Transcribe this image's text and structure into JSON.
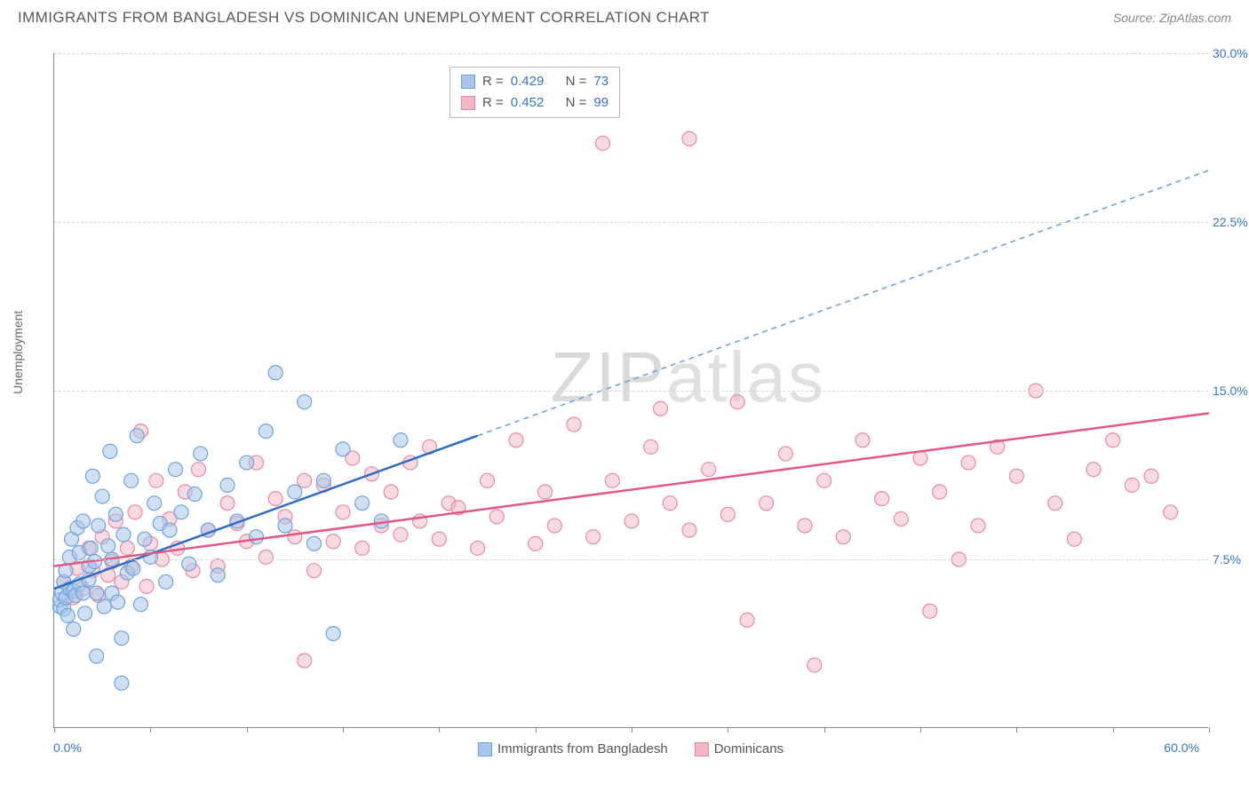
{
  "header": {
    "title": "IMMIGRANTS FROM BANGLADESH VS DOMINICAN UNEMPLOYMENT CORRELATION CHART",
    "source": "Source: ZipAtlas.com"
  },
  "watermark": {
    "part1": "ZIP",
    "part2": "atlas"
  },
  "chart": {
    "type": "scatter",
    "ylabel": "Unemployment",
    "xlim": [
      0,
      60
    ],
    "ylim": [
      0,
      30
    ],
    "x_min_label": "0.0%",
    "x_max_label": "60.0%",
    "ytick_labels": [
      "7.5%",
      "15.0%",
      "22.5%",
      "30.0%"
    ],
    "ytick_values": [
      7.5,
      15.0,
      22.5,
      30.0
    ],
    "xtick_values": [
      0,
      5,
      10,
      15,
      20,
      25,
      30,
      35,
      40,
      45,
      50,
      55,
      60
    ],
    "background_color": "#ffffff",
    "grid_color": "#d8d8d8",
    "axis_color": "#888888",
    "marker_radius": 8,
    "marker_stroke_width": 1.2,
    "series": [
      {
        "id": "bangladesh",
        "label": "Immigrants from Bangladesh",
        "fill": "#a9c6ea",
        "fill_opacity": 0.55,
        "stroke": "#6ea2dd",
        "line_color": "#2f6bc4",
        "line_dash_color": "#6ea2dd",
        "R": "0.429",
        "N": "73",
        "regression": {
          "x1": 0,
          "y1": 6.2,
          "x2_solid": 22,
          "y2_solid": 13.0,
          "x2": 60,
          "y2": 24.8
        },
        "points": [
          [
            0.3,
            5.4
          ],
          [
            0.3,
            5.7
          ],
          [
            0.4,
            6.0
          ],
          [
            0.5,
            5.3
          ],
          [
            0.5,
            6.5
          ],
          [
            0.6,
            5.8
          ],
          [
            0.6,
            7.0
          ],
          [
            0.7,
            5.0
          ],
          [
            0.8,
            6.2
          ],
          [
            0.8,
            7.6
          ],
          [
            0.9,
            8.4
          ],
          [
            1.0,
            6.1
          ],
          [
            1.0,
            4.4
          ],
          [
            1.1,
            5.9
          ],
          [
            1.2,
            8.9
          ],
          [
            1.3,
            6.4
          ],
          [
            1.3,
            7.8
          ],
          [
            1.5,
            9.2
          ],
          [
            1.5,
            6.0
          ],
          [
            1.6,
            5.1
          ],
          [
            1.8,
            7.2
          ],
          [
            1.8,
            6.6
          ],
          [
            1.9,
            8.0
          ],
          [
            2.0,
            11.2
          ],
          [
            2.1,
            7.4
          ],
          [
            2.2,
            6.0
          ],
          [
            2.3,
            9.0
          ],
          [
            2.5,
            10.3
          ],
          [
            2.6,
            5.4
          ],
          [
            2.8,
            8.1
          ],
          [
            2.9,
            12.3
          ],
          [
            3.0,
            6.0
          ],
          [
            3.0,
            7.5
          ],
          [
            3.2,
            9.5
          ],
          [
            3.3,
            5.6
          ],
          [
            3.5,
            4.0
          ],
          [
            3.6,
            8.6
          ],
          [
            3.8,
            6.9
          ],
          [
            4.0,
            11.0
          ],
          [
            4.1,
            7.1
          ],
          [
            4.3,
            13.0
          ],
          [
            4.5,
            5.5
          ],
          [
            4.7,
            8.4
          ],
          [
            5.0,
            7.6
          ],
          [
            5.2,
            10.0
          ],
          [
            5.5,
            9.1
          ],
          [
            5.8,
            6.5
          ],
          [
            6.0,
            8.8
          ],
          [
            6.3,
            11.5
          ],
          [
            6.6,
            9.6
          ],
          [
            7.0,
            7.3
          ],
          [
            7.3,
            10.4
          ],
          [
            7.6,
            12.2
          ],
          [
            8.0,
            8.8
          ],
          [
            8.5,
            6.8
          ],
          [
            9.0,
            10.8
          ],
          [
            9.5,
            9.2
          ],
          [
            10.0,
            11.8
          ],
          [
            10.5,
            8.5
          ],
          [
            11.0,
            13.2
          ],
          [
            11.5,
            15.8
          ],
          [
            12.0,
            9.0
          ],
          [
            12.5,
            10.5
          ],
          [
            13.0,
            14.5
          ],
          [
            13.5,
            8.2
          ],
          [
            14.0,
            11.0
          ],
          [
            14.5,
            4.2
          ],
          [
            15.0,
            12.4
          ],
          [
            16.0,
            10.0
          ],
          [
            17.0,
            9.2
          ],
          [
            18.0,
            12.8
          ],
          [
            3.5,
            2.0
          ],
          [
            2.2,
            3.2
          ]
        ]
      },
      {
        "id": "dominicans",
        "label": "Dominicans",
        "fill": "#f2b6c4",
        "fill_opacity": 0.5,
        "stroke": "#e88aa2",
        "line_color": "#e35784",
        "R": "0.452",
        "N": "99",
        "regression": {
          "x1": 0,
          "y1": 7.2,
          "x2_solid": 60,
          "y2_solid": 14.0,
          "x2": 60,
          "y2": 14.0
        },
        "points": [
          [
            0.5,
            6.5
          ],
          [
            1.0,
            5.8
          ],
          [
            1.2,
            7.1
          ],
          [
            1.5,
            6.2
          ],
          [
            1.8,
            8.0
          ],
          [
            2.0,
            7.0
          ],
          [
            2.3,
            5.9
          ],
          [
            2.5,
            8.5
          ],
          [
            2.8,
            6.8
          ],
          [
            3.0,
            7.4
          ],
          [
            3.2,
            9.2
          ],
          [
            3.5,
            6.5
          ],
          [
            3.8,
            8.0
          ],
          [
            4.0,
            7.2
          ],
          [
            4.2,
            9.6
          ],
          [
            4.5,
            13.2
          ],
          [
            4.8,
            6.3
          ],
          [
            5.0,
            8.2
          ],
          [
            5.3,
            11.0
          ],
          [
            5.6,
            7.5
          ],
          [
            6.0,
            9.3
          ],
          [
            6.4,
            8.0
          ],
          [
            6.8,
            10.5
          ],
          [
            7.2,
            7.0
          ],
          [
            7.5,
            11.5
          ],
          [
            8.0,
            8.8
          ],
          [
            8.5,
            7.2
          ],
          [
            9.0,
            10.0
          ],
          [
            9.5,
            9.1
          ],
          [
            10.0,
            8.3
          ],
          [
            10.5,
            11.8
          ],
          [
            11.0,
            7.6
          ],
          [
            11.5,
            10.2
          ],
          [
            12.0,
            9.4
          ],
          [
            12.5,
            8.5
          ],
          [
            13.0,
            11.0
          ],
          [
            13.5,
            7.0
          ],
          [
            14.0,
            10.8
          ],
          [
            14.5,
            8.3
          ],
          [
            15.0,
            9.6
          ],
          [
            15.5,
            12.0
          ],
          [
            16.0,
            8.0
          ],
          [
            16.5,
            11.3
          ],
          [
            17.0,
            9.0
          ],
          [
            17.5,
            10.5
          ],
          [
            18.0,
            8.6
          ],
          [
            18.5,
            11.8
          ],
          [
            19.0,
            9.2
          ],
          [
            19.5,
            12.5
          ],
          [
            20.0,
            8.4
          ],
          [
            20.5,
            10.0
          ],
          [
            21.0,
            9.8
          ],
          [
            22.0,
            8.0
          ],
          [
            22.5,
            11.0
          ],
          [
            23.0,
            9.4
          ],
          [
            24.0,
            12.8
          ],
          [
            25.0,
            8.2
          ],
          [
            25.5,
            10.5
          ],
          [
            26.0,
            9.0
          ],
          [
            27.0,
            13.5
          ],
          [
            28.0,
            8.5
          ],
          [
            28.5,
            26.0
          ],
          [
            29.0,
            11.0
          ],
          [
            30.0,
            9.2
          ],
          [
            31.0,
            12.5
          ],
          [
            32.0,
            10.0
          ],
          [
            33.0,
            8.8
          ],
          [
            33.0,
            26.2
          ],
          [
            34.0,
            11.5
          ],
          [
            35.0,
            9.5
          ],
          [
            35.5,
            14.5
          ],
          [
            36.0,
            4.8
          ],
          [
            37.0,
            10.0
          ],
          [
            38.0,
            12.2
          ],
          [
            39.0,
            9.0
          ],
          [
            39.5,
            2.8
          ],
          [
            40.0,
            11.0
          ],
          [
            41.0,
            8.5
          ],
          [
            42.0,
            12.8
          ],
          [
            43.0,
            10.2
          ],
          [
            44.0,
            9.3
          ],
          [
            45.0,
            12.0
          ],
          [
            45.5,
            5.2
          ],
          [
            46.0,
            10.5
          ],
          [
            47.0,
            7.5
          ],
          [
            47.5,
            11.8
          ],
          [
            48.0,
            9.0
          ],
          [
            49.0,
            12.5
          ],
          [
            50.0,
            11.2
          ],
          [
            51.0,
            15.0
          ],
          [
            52.0,
            10.0
          ],
          [
            53.0,
            8.4
          ],
          [
            54.0,
            11.5
          ],
          [
            55.0,
            12.8
          ],
          [
            56.0,
            10.8
          ],
          [
            57.0,
            11.2
          ],
          [
            58.0,
            9.6
          ],
          [
            13.0,
            3.0
          ],
          [
            31.5,
            14.2
          ]
        ]
      }
    ]
  },
  "legend": {
    "stats_label_R": "R =",
    "stats_label_N": "N ="
  }
}
